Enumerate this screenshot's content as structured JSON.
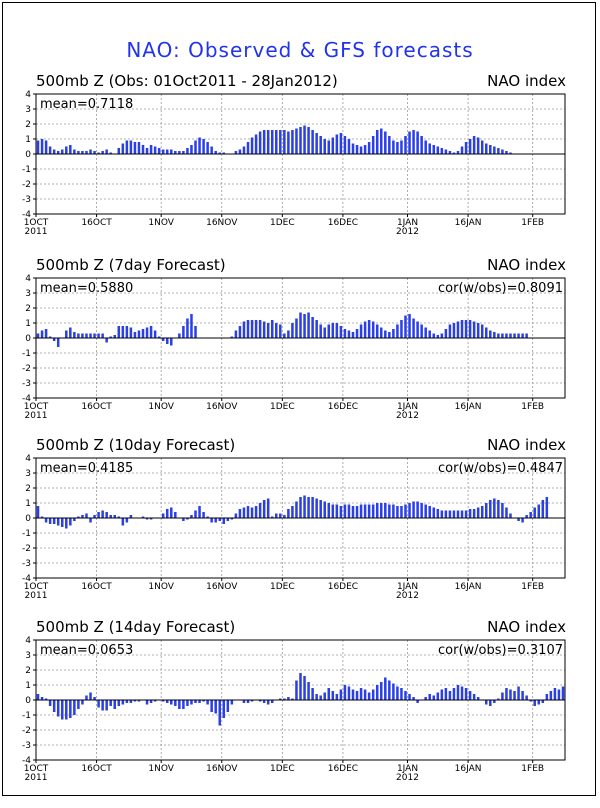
{
  "title": "NAO: Observed & GFS forecasts",
  "colors": {
    "bar": "#2a3fe6",
    "title": "#2233ee",
    "grid": "#999999"
  },
  "chart_data": [
    {
      "type": "bar",
      "subtitle": "500mb Z (Obs: 01Oct2011 - 28Jan2012)",
      "right_label": "NAO index",
      "mean_label": "mean=0.7118",
      "cor_label": "",
      "ylim": [
        -4,
        4
      ],
      "yticks": [
        4,
        3,
        2,
        1,
        0,
        -1,
        -2,
        -3,
        -4
      ],
      "x_tick_labels": [
        "1OCT",
        "16OCT",
        "1NOV",
        "16NOV",
        "1DEC",
        "16DEC",
        "1JAN",
        "16JAN",
        "1FEB"
      ],
      "x_tick_days": [
        0,
        15,
        31,
        46,
        61,
        76,
        92,
        107,
        123
      ],
      "year_labels": [
        {
          "day": 0,
          "text": "2011"
        },
        {
          "day": 92,
          "text": "2012"
        }
      ],
      "grid": true,
      "values": [
        0.9,
        1.0,
        0.9,
        0.5,
        0.3,
        0.2,
        0.3,
        0.5,
        0.6,
        0.3,
        0.2,
        0.2,
        0.2,
        0.3,
        0.2,
        0.1,
        0.2,
        0.3,
        0.1,
        0.0,
        0.4,
        0.7,
        0.9,
        0.9,
        0.8,
        0.8,
        0.6,
        0.4,
        0.6,
        0.5,
        0.4,
        0.3,
        0.3,
        0.3,
        0.2,
        0.2,
        0.2,
        0.4,
        0.6,
        0.9,
        1.1,
        1.0,
        0.8,
        0.5,
        0.2,
        0.1,
        0.1,
        0.0,
        0.0,
        0.2,
        0.3,
        0.5,
        0.8,
        1.1,
        1.3,
        1.5,
        1.6,
        1.6,
        1.6,
        1.6,
        1.6,
        1.6,
        1.5,
        1.6,
        1.7,
        1.8,
        1.9,
        1.8,
        1.6,
        1.4,
        1.2,
        1.0,
        0.9,
        1.1,
        1.3,
        1.4,
        1.2,
        1.0,
        0.7,
        0.6,
        0.5,
        0.6,
        0.8,
        1.2,
        1.6,
        1.7,
        1.5,
        1.2,
        0.9,
        0.8,
        0.9,
        1.2,
        1.5,
        1.6,
        1.5,
        1.2,
        0.9,
        0.7,
        0.6,
        0.5,
        0.4,
        0.3,
        0.2,
        0.1,
        0.2,
        0.5,
        0.8,
        1.0,
        1.2,
        1.1,
        0.9,
        0.7,
        0.6,
        0.5,
        0.4,
        0.3,
        0.2,
        0.1,
        0.0,
        0.0
      ]
    },
    {
      "type": "bar",
      "subtitle": "500mb Z (7day Forecast)",
      "right_label": "NAO index",
      "mean_label": "mean=0.5880",
      "cor_label": "cor(w/obs)=0.8091",
      "ylim": [
        -4,
        4
      ],
      "yticks": [
        4,
        3,
        2,
        1,
        0,
        -1,
        -2,
        -3,
        -4
      ],
      "x_tick_labels": [
        "1OCT",
        "16OCT",
        "1NOV",
        "16NOV",
        "1DEC",
        "16DEC",
        "1JAN",
        "16JAN",
        "1FEB"
      ],
      "x_tick_days": [
        0,
        15,
        31,
        46,
        61,
        76,
        92,
        107,
        123
      ],
      "year_labels": [
        {
          "day": 0,
          "text": "2011"
        },
        {
          "day": 92,
          "text": "2012"
        }
      ],
      "grid": true,
      "values": [
        0.3,
        0.5,
        0.6,
        0.1,
        -0.2,
        -0.6,
        0.0,
        0.5,
        0.7,
        0.4,
        0.3,
        0.3,
        0.3,
        0.3,
        0.3,
        0.3,
        0.3,
        -0.3,
        0.1,
        0.2,
        0.8,
        0.8,
        0.8,
        0.7,
        0.4,
        0.5,
        0.6,
        0.7,
        0.8,
        0.5,
        0.1,
        -0.2,
        -0.4,
        -0.5,
        0.0,
        0.3,
        0.8,
        1.3,
        1.6,
        0.8,
        0.0,
        0.0,
        0.0,
        0.0,
        0.0,
        0.0,
        0.0,
        0.0,
        0.1,
        0.5,
        0.8,
        1.1,
        1.2,
        1.2,
        1.2,
        1.2,
        1.1,
        1.0,
        1.2,
        1.0,
        0.9,
        0.3,
        0.5,
        1.0,
        1.3,
        1.7,
        1.6,
        1.7,
        1.4,
        1.2,
        0.9,
        0.7,
        0.9,
        1.0,
        1.0,
        0.8,
        0.6,
        0.5,
        0.4,
        0.6,
        0.9,
        1.1,
        1.2,
        1.1,
        0.9,
        0.7,
        0.5,
        0.4,
        0.6,
        0.9,
        1.2,
        1.5,
        1.6,
        1.3,
        1.1,
        0.9,
        0.7,
        0.5,
        0.3,
        0.2,
        0.3,
        0.6,
        0.9,
        1.0,
        1.1,
        1.2,
        1.2,
        1.2,
        1.1,
        1.0,
        0.9,
        0.7,
        0.5,
        0.4,
        0.3,
        0.3,
        0.3,
        0.3,
        0.3,
        0.3,
        0.3,
        0.3
      ]
    },
    {
      "type": "bar",
      "subtitle": "500mb Z (10day Forecast)",
      "right_label": "NAO index",
      "mean_label": "mean=0.4185",
      "cor_label": "cor(w/obs)=0.4847",
      "ylim": [
        -4,
        4
      ],
      "yticks": [
        4,
        3,
        2,
        1,
        0,
        -1,
        -2,
        -3,
        -4
      ],
      "x_tick_labels": [
        "1OCT",
        "16OCT",
        "1NOV",
        "16NOV",
        "1DEC",
        "16DEC",
        "1JAN",
        "16JAN",
        "1FEB"
      ],
      "x_tick_days": [
        0,
        15,
        31,
        46,
        61,
        76,
        92,
        107,
        123
      ],
      "year_labels": [
        {
          "day": 0,
          "text": "2011"
        },
        {
          "day": 92,
          "text": "2012"
        }
      ],
      "grid": true,
      "values": [
        0.8,
        0.1,
        -0.3,
        -0.4,
        -0.4,
        -0.5,
        -0.6,
        -0.7,
        -0.5,
        -0.2,
        0.1,
        0.2,
        0.3,
        -0.3,
        0.2,
        0.4,
        0.5,
        0.4,
        0.2,
        0.2,
        0.1,
        -0.5,
        -0.3,
        0.2,
        0.0,
        0.0,
        0.1,
        -0.1,
        -0.1,
        0.0,
        0.0,
        0.3,
        0.6,
        0.7,
        0.4,
        0.0,
        -0.2,
        -0.1,
        0.2,
        0.5,
        0.8,
        0.4,
        0.1,
        -0.3,
        -0.3,
        -0.2,
        -0.4,
        -0.2,
        -0.1,
        0.3,
        0.6,
        0.7,
        0.8,
        0.7,
        0.8,
        1.0,
        1.2,
        1.3,
        0.1,
        0.3,
        0.3,
        0.2,
        0.6,
        0.8,
        1.1,
        1.4,
        1.5,
        1.4,
        1.4,
        1.3,
        1.2,
        1.1,
        1.0,
        0.9,
        0.9,
        0.8,
        0.9,
        0.9,
        0.8,
        0.8,
        0.9,
        0.9,
        0.9,
        0.9,
        1.0,
        1.0,
        1.0,
        0.9,
        0.9,
        0.8,
        0.8,
        0.9,
        1.0,
        1.1,
        1.1,
        1.0,
        0.9,
        0.8,
        0.7,
        0.6,
        0.5,
        0.5,
        0.5,
        0.5,
        0.5,
        0.5,
        0.5,
        0.6,
        0.6,
        0.7,
        0.8,
        1.0,
        1.2,
        1.3,
        1.2,
        1.0,
        0.7,
        0.3,
        0.0,
        -0.2,
        -0.3,
        0.2,
        0.4,
        0.7,
        0.9,
        1.2,
        1.4
      ]
    },
    {
      "type": "bar",
      "subtitle": "500mb Z (14day Forecast)",
      "right_label": "NAO index",
      "mean_label": "mean=0.0653",
      "cor_label": "cor(w/obs)=0.3107",
      "ylim": [
        -4,
        4
      ],
      "yticks": [
        4,
        3,
        2,
        1,
        0,
        -1,
        -2,
        -3,
        -4
      ],
      "x_tick_labels": [
        "1OCT",
        "16OCT",
        "1NOV",
        "16NOV",
        "1DEC",
        "16DEC",
        "1JAN",
        "16JAN",
        "1FEB"
      ],
      "x_tick_days": [
        0,
        15,
        31,
        46,
        61,
        76,
        92,
        107,
        123
      ],
      "year_labels": [
        {
          "day": 0,
          "text": "2011"
        },
        {
          "day": 92,
          "text": "2012"
        }
      ],
      "grid": true,
      "values": [
        0.4,
        0.2,
        0.1,
        -0.4,
        -0.8,
        -1.1,
        -1.3,
        -1.3,
        -1.2,
        -1.0,
        -0.6,
        -0.3,
        0.3,
        0.5,
        0.2,
        -0.5,
        -0.7,
        -0.7,
        -0.4,
        -0.6,
        -0.4,
        -0.3,
        -0.2,
        -0.2,
        -0.1,
        -0.1,
        0.0,
        -0.3,
        -0.2,
        -0.1,
        0.0,
        -0.1,
        -0.2,
        -0.3,
        -0.4,
        -0.6,
        -0.6,
        -0.4,
        -0.3,
        -0.2,
        -0.2,
        -0.1,
        -0.3,
        -0.8,
        -0.9,
        -1.7,
        -1.2,
        -0.8,
        -0.3,
        0.0,
        0.0,
        -0.2,
        -0.2,
        -0.1,
        0.0,
        -0.1,
        -0.2,
        -0.3,
        -0.2,
        0.0,
        0.1,
        0.1,
        0.2,
        0.1,
        1.3,
        1.8,
        1.6,
        1.2,
        0.8,
        0.4,
        0.3,
        0.5,
        0.8,
        0.6,
        0.4,
        0.7,
        1.0,
        0.9,
        0.7,
        0.6,
        0.8,
        0.7,
        0.5,
        0.7,
        1.0,
        1.2,
        1.5,
        1.3,
        1.1,
        0.9,
        0.8,
        0.6,
        0.4,
        0.2,
        -0.2,
        0.0,
        0.2,
        0.4,
        0.3,
        0.5,
        0.7,
        0.8,
        0.6,
        0.8,
        1.0,
        0.9,
        0.8,
        0.6,
        0.4,
        0.2,
        0.0,
        -0.3,
        -0.4,
        -0.2,
        0.1,
        0.5,
        0.8,
        0.7,
        0.6,
        0.9,
        0.6,
        0.3,
        -0.1,
        -0.4,
        -0.3,
        -0.2,
        0.4,
        0.6,
        0.8,
        0.7,
        0.9
      ]
    }
  ]
}
